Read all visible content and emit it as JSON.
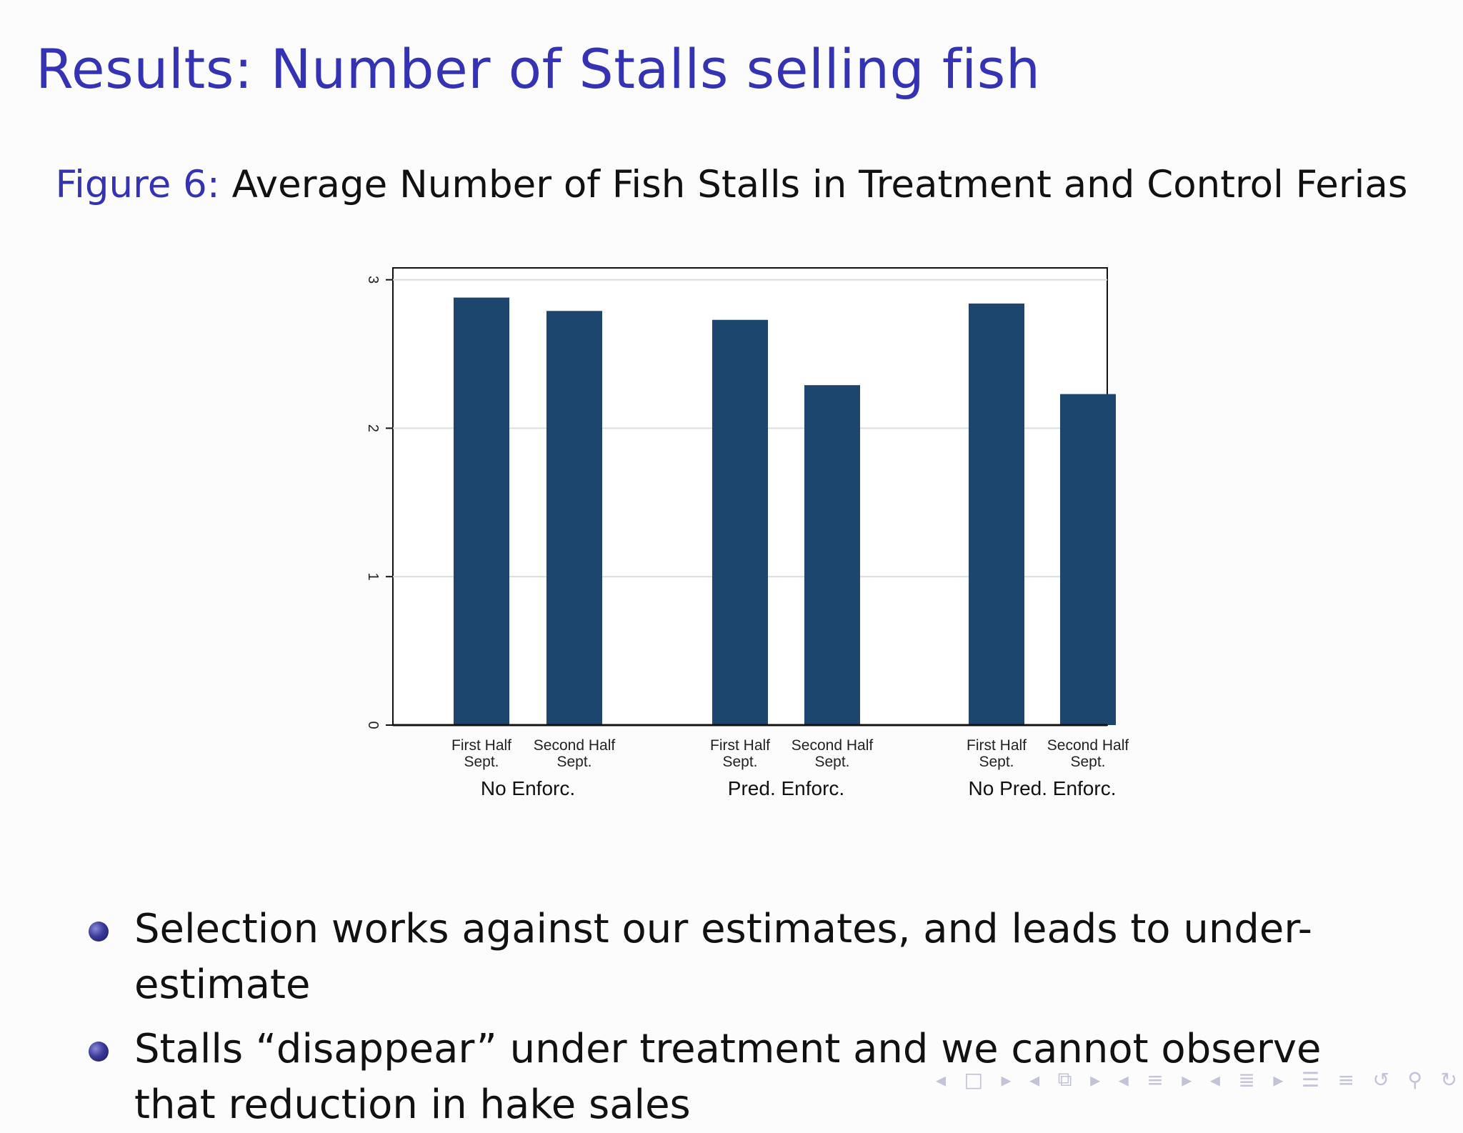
{
  "slide": {
    "title": "Results:  Number of Stalls selling fish",
    "caption_prefix": "Figure 6:",
    "caption_text": "Average Number of Fish Stalls in Treatment and Control Ferias"
  },
  "bullets": [
    "Selection works against our estimates, and leads to under-estimate",
    "Stalls “disappear” under treatment and we cannot observe that reduction in hake sales"
  ],
  "nav_icons": [
    "left-arrow-icon",
    "frame-icon",
    "right-arrow-icon",
    "left-arrow-icon",
    "subsection-icon",
    "right-arrow-icon",
    "left-arrow-icon",
    "section-icon",
    "right-arrow-icon",
    "left-arrow-icon",
    "section-list-icon",
    "right-arrow-icon",
    "outline-icon",
    "align-icon",
    "back-icon",
    "search-icon",
    "forward-icon"
  ],
  "chart_data": {
    "type": "bar",
    "groups": [
      "No Enforc.",
      "Pred. Enforc.",
      "No Pred. Enforc."
    ],
    "categories": [
      "First Half Sept.",
      "Second Half Sept."
    ],
    "category_lines": [
      [
        "First Half",
        "Sept."
      ],
      [
        "Second Half",
        "Sept."
      ]
    ],
    "values": [
      [
        2.88,
        2.79
      ],
      [
        2.73,
        2.29
      ],
      [
        2.84,
        2.23
      ]
    ],
    "yticks": [
      "0",
      "1",
      "2",
      "3"
    ],
    "ylim": [
      0,
      3.08
    ],
    "grid": true,
    "bar_color": "#1c466e",
    "grid_color": "#dcdcdc"
  }
}
